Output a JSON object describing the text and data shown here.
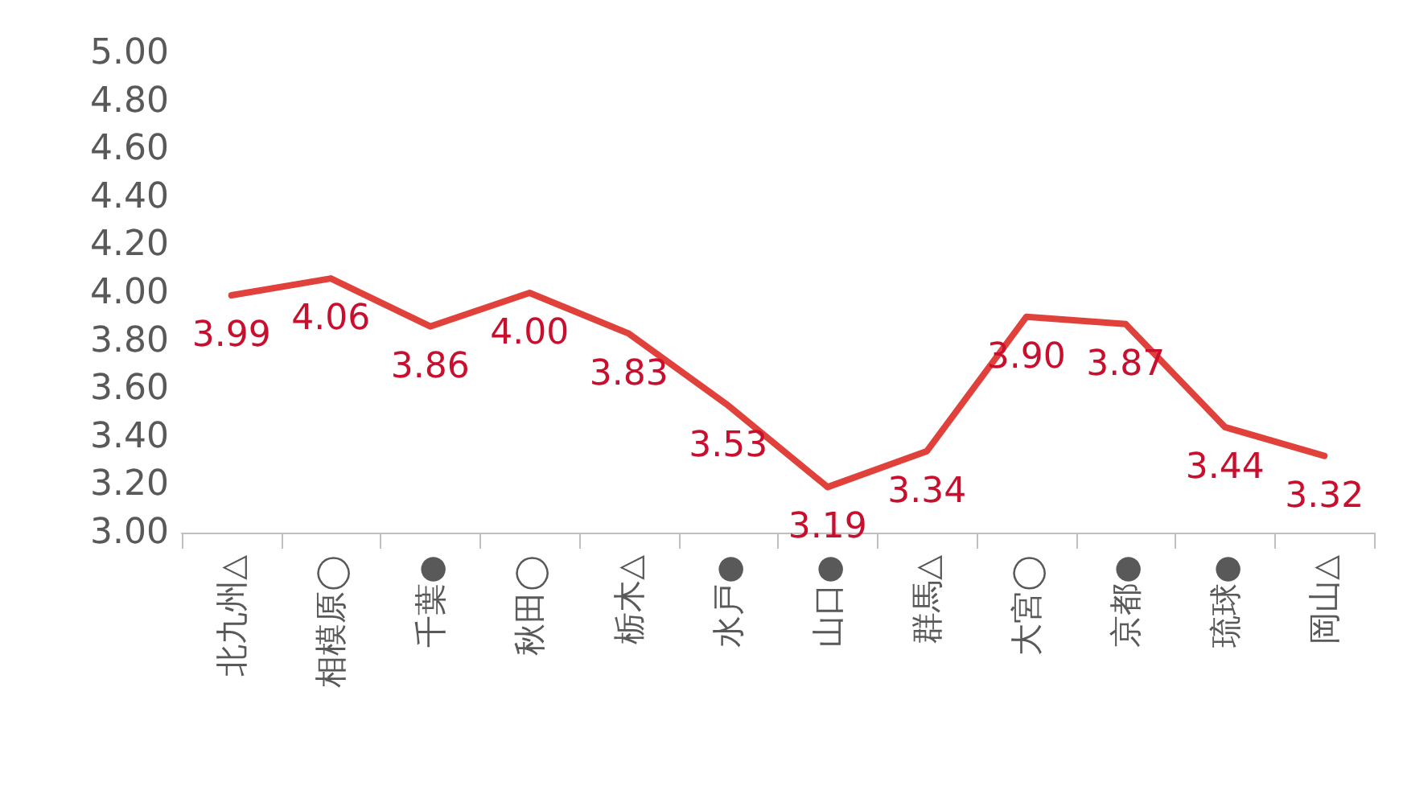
{
  "chart_data": {
    "type": "line",
    "categories": [
      "北九州△",
      "相模原◯",
      "千葉●",
      "秋田◯",
      "栃木△",
      "水戸●",
      "山口●",
      "群馬△",
      "大宮◯",
      "京都●",
      "琉球●",
      "岡山△"
    ],
    "series": [
      {
        "color": "#e0413a",
        "values": [
          3.99,
          4.06,
          3.86,
          4.0,
          3.83,
          3.53,
          3.19,
          3.34,
          3.9,
          3.87,
          3.44,
          3.32
        ],
        "value_labels": [
          "3.99",
          "4.06",
          "3.86",
          "4.00",
          "3.83",
          "3.53",
          "3.19",
          "3.34",
          "3.90",
          "3.87",
          "3.44",
          "3.32"
        ]
      }
    ],
    "ylim": [
      3,
      5
    ],
    "yticks": [
      {
        "value": 3,
        "label": "3.00"
      },
      {
        "value": 3.2,
        "label": "3.20"
      },
      {
        "value": 3.4,
        "label": "3.40"
      },
      {
        "value": 3.6,
        "label": "3.60"
      },
      {
        "value": 3.8,
        "label": "3.80"
      },
      {
        "value": 4,
        "label": "4.00"
      },
      {
        "value": 4.2,
        "label": "4.20"
      },
      {
        "value": 4.4,
        "label": "4.40"
      },
      {
        "value": 4.6,
        "label": "4.60"
      },
      {
        "value": 4.8,
        "label": "4.80"
      },
      {
        "value": 5,
        "label": "5.00"
      }
    ],
    "grid": false,
    "marker": "none",
    "line_style": "solid"
  }
}
